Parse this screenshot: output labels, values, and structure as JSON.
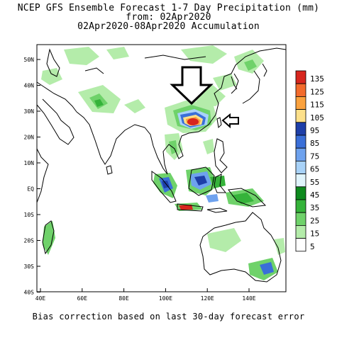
{
  "title": {
    "line1": "NCEP GFS Ensemble Forecast 1-7 Day Precipitation (mm)",
    "line2": "from: 02Apr2020",
    "line3": "02Apr2020-08Apr2020 Accumulation"
  },
  "footer": "Bias correction based on last 30-day forecast error",
  "map": {
    "lat_labels": [
      "50N",
      "40N",
      "30N",
      "20N",
      "10N",
      "EQ",
      "10S",
      "20S",
      "30S",
      "40S"
    ],
    "lon_labels": [
      "40E",
      "60E",
      "80E",
      "100E",
      "120E",
      "140E"
    ]
  },
  "legend": {
    "levels": [
      {
        "label": "135",
        "color": "#d7261e"
      },
      {
        "label": "125",
        "color": "#f36b2c"
      },
      {
        "label": "115",
        "color": "#fba23e"
      },
      {
        "label": "105",
        "color": "#fde08a"
      },
      {
        "label": "95",
        "color": "#1e3fa8"
      },
      {
        "label": "85",
        "color": "#3a6fd8"
      },
      {
        "label": "75",
        "color": "#6ea2ee"
      },
      {
        "label": "65",
        "color": "#a8d2f8"
      },
      {
        "label": "55",
        "color": "#e0f4fc"
      },
      {
        "label": "45",
        "color": "#0e8a1e"
      },
      {
        "label": "35",
        "color": "#35b33a"
      },
      {
        "label": "25",
        "color": "#6fd26a"
      },
      {
        "label": "15",
        "color": "#b4ecaa"
      },
      {
        "label": "5",
        "color": "#ffffff"
      }
    ]
  }
}
